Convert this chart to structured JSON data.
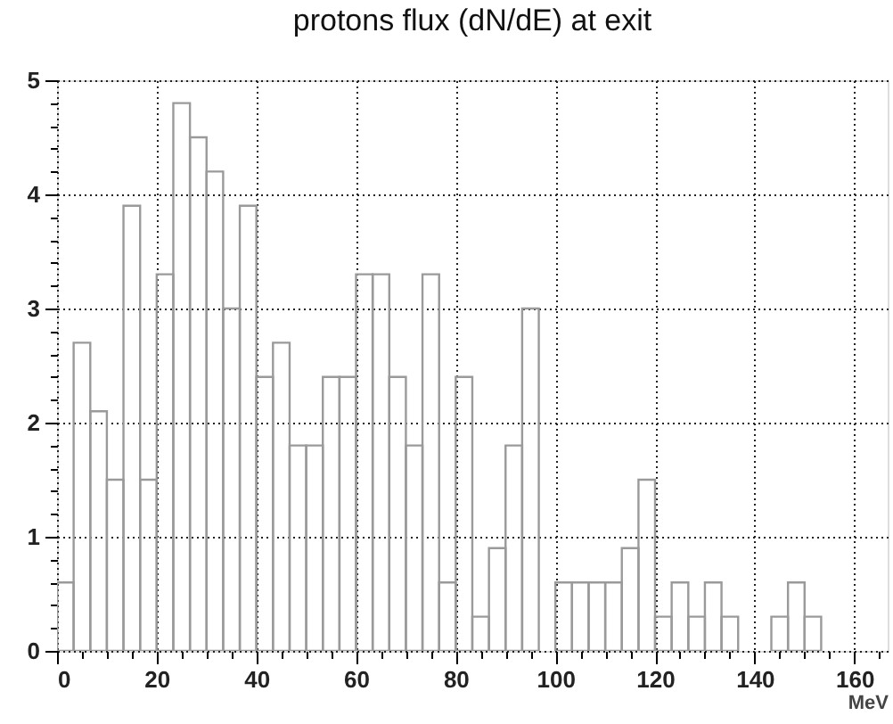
{
  "chart_data": {
    "type": "histogram",
    "title": "protons flux (dN/dE) at exit",
    "xlabel": "MeV",
    "bins": [
      0,
      3.33,
      6.67,
      10,
      13.33,
      16.67,
      20,
      23.33,
      26.67,
      30,
      33.33,
      36.67,
      40,
      43.33,
      46.67,
      50,
      53.33,
      56.67,
      60,
      63.33,
      66.67,
      70,
      73.33,
      76.67,
      80,
      83.33,
      86.67,
      90,
      93.33,
      96.67,
      100,
      103.33,
      106.67,
      110,
      113.33,
      116.67,
      120,
      123.33,
      126.67,
      130,
      133.33,
      136.67,
      140,
      143.33,
      146.67,
      150,
      153.33
    ],
    "values": [
      0.6,
      2.7,
      2.1,
      1.5,
      3.9,
      1.5,
      3.3,
      4.8,
      4.5,
      4.2,
      3.0,
      3.9,
      2.4,
      2.7,
      1.8,
      1.8,
      2.4,
      2.4,
      3.3,
      3.3,
      2.4,
      1.8,
      3.3,
      0.6,
      2.4,
      0.3,
      0.9,
      1.8,
      3.0,
      0,
      0.6,
      0.6,
      0.6,
      0.6,
      0.9,
      1.5,
      0.3,
      0.6,
      0.3,
      0.6,
      0.3,
      0,
      0,
      0.3,
      0.6,
      0.3
    ],
    "color": "#9a9a9a",
    "xlim": [
      0,
      166.67
    ],
    "ylim": [
      0,
      5
    ],
    "xticks": [
      0,
      {
        "value": 5,
        "label": null
      },
      {
        "value": 10,
        "label": null
      },
      {
        "value": 15,
        "label": null
      },
      20,
      {
        "value": 25,
        "label": null
      },
      {
        "value": 30,
        "label": null
      },
      {
        "value": 35,
        "label": null
      },
      40,
      {
        "value": 45,
        "label": null
      },
      {
        "value": 50,
        "label": null
      },
      {
        "value": 55,
        "label": null
      },
      60,
      {
        "value": 65,
        "label": null
      },
      {
        "value": 70,
        "label": null
      },
      {
        "value": 75,
        "label": null
      },
      80,
      {
        "value": 85,
        "label": null
      },
      {
        "value": 90,
        "label": null
      },
      {
        "value": 95,
        "label": null
      },
      100,
      {
        "value": 105,
        "label": null
      },
      {
        "value": 110,
        "label": null
      },
      {
        "value": 115,
        "label": null
      },
      120,
      {
        "value": 125,
        "label": null
      },
      {
        "value": 130,
        "label": null
      },
      {
        "value": 135,
        "label": null
      },
      140,
      {
        "value": 145,
        "label": null
      },
      {
        "value": 150,
        "label": null
      },
      {
        "value": 155,
        "label": null
      },
      160,
      {
        "value": 165,
        "label": null
      }
    ],
    "yticks": [
      0,
      {
        "value": 0.2,
        "label": null
      },
      {
        "value": 0.4,
        "label": null
      },
      {
        "value": 0.6,
        "label": null
      },
      {
        "value": 0.8,
        "label": null
      },
      1,
      {
        "value": 1.2,
        "label": null
      },
      {
        "value": 1.4,
        "label": null
      },
      {
        "value": 1.6,
        "label": null
      },
      {
        "value": 1.8,
        "label": null
      },
      2,
      {
        "value": 2.2,
        "label": null
      },
      {
        "value": 2.4,
        "label": null
      },
      {
        "value": 2.6,
        "label": null
      },
      {
        "value": 2.8,
        "label": null
      },
      3,
      {
        "value": 3.2,
        "label": null
      },
      {
        "value": 3.4,
        "label": null
      },
      {
        "value": 3.6,
        "label": null
      },
      {
        "value": 3.8,
        "label": null
      },
      4,
      {
        "value": 4.2,
        "label": null
      },
      {
        "value": 4.4,
        "label": null
      },
      {
        "value": 4.6,
        "label": null
      },
      {
        "value": 4.8,
        "label": null
      },
      5
    ],
    "grid": true
  }
}
